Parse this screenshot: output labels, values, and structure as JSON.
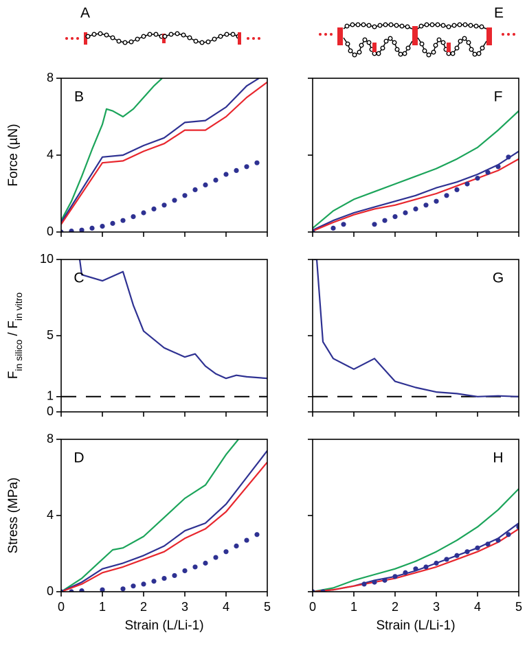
{
  "diagrams": [
    {
      "label": "A"
    },
    {
      "label": "E"
    }
  ],
  "chart_data": [
    {
      "type": "line",
      "title": "B",
      "ylabel": "Force (µN)",
      "xlim": [
        0,
        5
      ],
      "xticks": [
        0,
        1,
        2,
        3,
        4,
        5
      ],
      "ylim": [
        0,
        8
      ],
      "yticks": [
        0,
        4,
        8
      ],
      "show_xtick_labels": false,
      "show_ytick_labels": true,
      "series": [
        {
          "style": "line",
          "color": "#1ba45a",
          "x": [
            0,
            0.25,
            0.5,
            0.75,
            1,
            1.1,
            1.25,
            1.5,
            1.75,
            2,
            2.25,
            2.45
          ],
          "values": [
            0.6,
            1.6,
            2.9,
            4.3,
            5.6,
            6.4,
            6.3,
            6.0,
            6.4,
            7.0,
            7.6,
            8.0
          ]
        },
        {
          "style": "line",
          "color": "#2e3192",
          "x": [
            0,
            0.5,
            1,
            1.5,
            2,
            2.5,
            3,
            3.5,
            4,
            4.5,
            4.8
          ],
          "values": [
            0.5,
            2.2,
            3.9,
            4.0,
            4.5,
            4.9,
            5.7,
            5.8,
            6.5,
            7.6,
            8.0
          ]
        },
        {
          "style": "line",
          "color": "#e8262d",
          "x": [
            0,
            0.5,
            1,
            1.5,
            2,
            2.5,
            3,
            3.5,
            4,
            4.5,
            5
          ],
          "values": [
            0.4,
            2.0,
            3.6,
            3.7,
            4.2,
            4.6,
            5.3,
            5.3,
            6.0,
            7.0,
            7.8
          ]
        },
        {
          "style": "dots",
          "color": "#2e3192",
          "x": [
            0,
            0.25,
            0.5,
            0.75,
            1,
            1.25,
            1.5,
            1.75,
            2,
            2.25,
            2.5,
            2.75,
            3,
            3.25,
            3.5,
            3.75,
            4,
            4.25,
            4.5,
            4.75
          ],
          "values": [
            0,
            0.05,
            0.1,
            0.2,
            0.3,
            0.45,
            0.6,
            0.8,
            1.0,
            1.2,
            1.4,
            1.65,
            1.9,
            2.2,
            2.45,
            2.7,
            3.0,
            3.2,
            3.4,
            3.6
          ]
        }
      ]
    },
    {
      "type": "line",
      "title": "C",
      "ylabel": {
        "parts": [
          {
            "text": "F"
          },
          {
            "text": "in silico",
            "sub": true
          },
          {
            "text": " / F"
          },
          {
            "text": "in vitro",
            "sub": true
          }
        ]
      },
      "xlim": [
        0,
        5
      ],
      "xticks": [
        0,
        1,
        2,
        3,
        4,
        5
      ],
      "ylim": [
        0,
        10
      ],
      "yticks": [
        0,
        1,
        5,
        10
      ],
      "show_xtick_labels": false,
      "show_ytick_labels": true,
      "reference_line": 1,
      "series": [
        {
          "style": "line",
          "color": "#2e3192",
          "x": [
            0.45,
            0.5,
            1,
            1.5,
            1.75,
            2,
            2.5,
            3,
            3.25,
            3.5,
            3.75,
            4,
            4.25,
            4.5,
            5
          ],
          "values": [
            10,
            9.0,
            8.6,
            9.2,
            7.0,
            5.3,
            4.2,
            3.6,
            3.8,
            3.0,
            2.5,
            2.2,
            2.4,
            2.3,
            2.2
          ]
        }
      ]
    },
    {
      "type": "line",
      "title": "D",
      "ylabel": "Stress (MPa)",
      "xlabel": "Strain (L/Li-1)",
      "xlim": [
        0,
        5
      ],
      "xticks": [
        0,
        1,
        2,
        3,
        4,
        5
      ],
      "ylim": [
        0,
        8
      ],
      "yticks": [
        0,
        4,
        8
      ],
      "show_xtick_labels": true,
      "show_ytick_labels": true,
      "series": [
        {
          "style": "line",
          "color": "#1ba45a",
          "x": [
            0,
            0.5,
            1,
            1.25,
            1.5,
            2,
            2.5,
            3,
            3.5,
            4,
            4.3
          ],
          "values": [
            0,
            0.7,
            1.7,
            2.2,
            2.3,
            2.9,
            3.9,
            4.9,
            5.6,
            7.2,
            8.0
          ]
        },
        {
          "style": "line",
          "color": "#2e3192",
          "x": [
            0,
            0.5,
            1,
            1.5,
            2,
            2.5,
            3,
            3.5,
            4,
            4.5,
            5
          ],
          "values": [
            0,
            0.5,
            1.2,
            1.5,
            1.9,
            2.4,
            3.2,
            3.6,
            4.6,
            6.0,
            7.4
          ]
        },
        {
          "style": "line",
          "color": "#e8262d",
          "x": [
            0,
            0.5,
            1,
            1.5,
            2,
            2.5,
            3,
            3.5,
            4,
            4.5,
            5
          ],
          "values": [
            0,
            0.4,
            1.0,
            1.3,
            1.7,
            2.1,
            2.8,
            3.3,
            4.2,
            5.5,
            6.8
          ]
        },
        {
          "style": "dots",
          "color": "#2e3192",
          "x": [
            0,
            0.25,
            0.5,
            1,
            1.5,
            1.75,
            2,
            2.25,
            2.5,
            2.75,
            3,
            3.25,
            3.5,
            3.75,
            4,
            4.25,
            4.5,
            4.75
          ],
          "values": [
            0,
            0,
            0.05,
            0.1,
            0.15,
            0.3,
            0.4,
            0.55,
            0.7,
            0.85,
            1.1,
            1.3,
            1.5,
            1.8,
            2.1,
            2.4,
            2.7,
            3.0
          ]
        }
      ]
    },
    {
      "type": "line",
      "title": "F",
      "xlim": [
        0,
        5
      ],
      "xticks": [
        0,
        1,
        2,
        3,
        4,
        5
      ],
      "ylim": [
        0,
        8
      ],
      "yticks": [
        0,
        4,
        8
      ],
      "show_xtick_labels": false,
      "show_ytick_labels": false,
      "series": [
        {
          "style": "line",
          "color": "#1ba45a",
          "x": [
            0,
            0.5,
            1,
            1.5,
            2,
            2.5,
            3,
            3.5,
            4,
            4.5,
            5
          ],
          "values": [
            0.2,
            1.1,
            1.7,
            2.1,
            2.5,
            2.9,
            3.3,
            3.8,
            4.4,
            5.3,
            6.3
          ]
        },
        {
          "style": "line",
          "color": "#2e3192",
          "x": [
            0,
            0.5,
            1,
            1.5,
            2,
            2.5,
            3,
            3.5,
            4,
            4.5,
            5
          ],
          "values": [
            0.1,
            0.6,
            1.0,
            1.3,
            1.6,
            1.9,
            2.3,
            2.6,
            3.0,
            3.5,
            4.2
          ]
        },
        {
          "style": "line",
          "color": "#e8262d",
          "x": [
            0,
            0.5,
            1,
            1.5,
            2,
            2.5,
            3,
            3.5,
            4,
            4.5,
            5
          ],
          "values": [
            0.05,
            0.5,
            0.9,
            1.2,
            1.4,
            1.7,
            2.0,
            2.4,
            2.8,
            3.2,
            3.8
          ]
        },
        {
          "style": "dots",
          "color": "#2e3192",
          "x": [
            0,
            0.5,
            0.75,
            1.5,
            1.75,
            2,
            2.25,
            2.5,
            2.75,
            3,
            3.25,
            3.5,
            3.75,
            4,
            4.25,
            4.5,
            4.75
          ],
          "values": [
            0,
            0.2,
            0.4,
            0.4,
            0.6,
            0.8,
            1.0,
            1.2,
            1.4,
            1.6,
            1.9,
            2.2,
            2.5,
            2.8,
            3.1,
            3.4,
            3.9
          ]
        }
      ]
    },
    {
      "type": "line",
      "title": "G",
      "xlim": [
        0,
        5
      ],
      "xticks": [
        0,
        1,
        2,
        3,
        4,
        5
      ],
      "ylim": [
        0,
        10
      ],
      "yticks": [
        0,
        1,
        5,
        10
      ],
      "show_xtick_labels": false,
      "show_ytick_labels": false,
      "reference_line": 1,
      "series": [
        {
          "style": "line",
          "color": "#2e3192",
          "x": [
            0.02,
            0.1,
            0.25,
            0.5,
            1,
            1.5,
            2,
            2.5,
            3,
            3.5,
            4,
            4.5,
            5
          ],
          "values": [
            10,
            10,
            4.6,
            3.5,
            2.8,
            3.5,
            2.0,
            1.6,
            1.3,
            1.2,
            1.0,
            1.05,
            1.0
          ]
        }
      ]
    },
    {
      "type": "line",
      "title": "H",
      "xlabel": "Strain (L/Li-1)",
      "xlim": [
        0,
        5
      ],
      "xticks": [
        0,
        1,
        2,
        3,
        4,
        5
      ],
      "ylim": [
        0,
        8
      ],
      "yticks": [
        0,
        4,
        8
      ],
      "show_xtick_labels": true,
      "show_ytick_labels": false,
      "series": [
        {
          "style": "line",
          "color": "#1ba45a",
          "x": [
            0,
            0.5,
            1,
            1.5,
            2,
            2.5,
            3,
            3.5,
            4,
            4.5,
            5
          ],
          "values": [
            0,
            0.2,
            0.6,
            0.9,
            1.2,
            1.6,
            2.1,
            2.7,
            3.4,
            4.3,
            5.4
          ]
        },
        {
          "style": "line",
          "color": "#2e3192",
          "x": [
            0,
            0.5,
            1,
            1.5,
            2,
            2.5,
            3,
            3.5,
            4,
            4.5,
            5
          ],
          "values": [
            0,
            0.1,
            0.3,
            0.6,
            0.8,
            1.1,
            1.5,
            1.9,
            2.3,
            2.8,
            3.6
          ]
        },
        {
          "style": "line",
          "color": "#e8262d",
          "x": [
            0,
            0.5,
            1,
            1.5,
            2,
            2.5,
            3,
            3.5,
            4,
            4.5,
            5
          ],
          "values": [
            0,
            0.1,
            0.3,
            0.5,
            0.7,
            1.0,
            1.3,
            1.7,
            2.1,
            2.6,
            3.3
          ]
        },
        {
          "style": "dots",
          "color": "#2e3192",
          "x": [
            0,
            0.25,
            1.25,
            1.5,
            1.75,
            2,
            2.25,
            2.5,
            2.75,
            3,
            3.25,
            3.5,
            3.75,
            4,
            4.25,
            4.5,
            4.75,
            5
          ],
          "values": [
            0,
            0,
            0.4,
            0.5,
            0.6,
            0.8,
            1.0,
            1.2,
            1.3,
            1.5,
            1.7,
            1.9,
            2.1,
            2.3,
            2.5,
            2.7,
            3.0,
            3.4
          ]
        }
      ]
    }
  ]
}
